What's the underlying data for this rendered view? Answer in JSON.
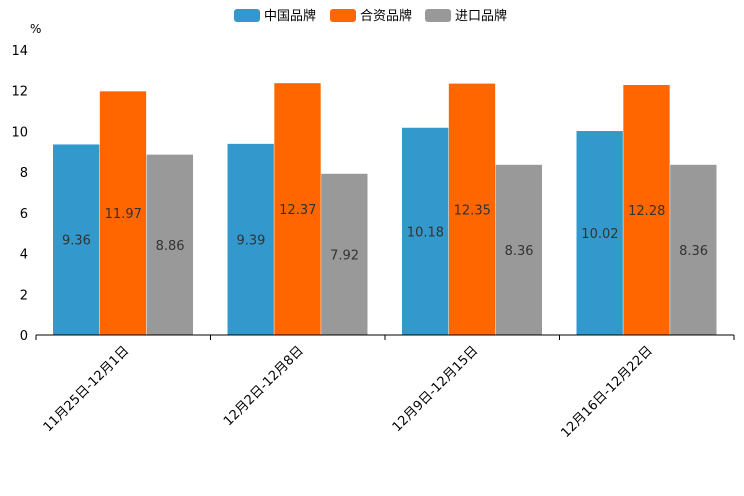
{
  "chart_data": {
    "type": "bar",
    "title": "",
    "xlabel": "",
    "ylabel": "%",
    "ylim": [
      0,
      14
    ],
    "yticks": [
      0,
      2,
      4,
      6,
      8,
      10,
      12,
      14
    ],
    "grid": false,
    "legend_position": "top-center",
    "categories": [
      "11月25日-12月1日",
      "12月2日-12月8日",
      "12月9日-12月15日",
      "12月16日-12月22日"
    ],
    "series": [
      {
        "name": "中国品牌",
        "color": "#3399CC",
        "values": [
          9.36,
          9.39,
          10.18,
          10.02
        ],
        "labels": [
          "9.36",
          "9.39",
          "10.18",
          "10.02"
        ]
      },
      {
        "name": "合资品牌",
        "color": "#FF6600",
        "values": [
          11.97,
          12.37,
          12.35,
          12.28
        ],
        "labels": [
          "11.97",
          "12.37",
          "12.35",
          "12.28"
        ]
      },
      {
        "name": "进口品牌",
        "color": "#999999",
        "values": [
          8.86,
          7.92,
          8.36,
          8.36
        ],
        "labels": [
          "8.86",
          "7.92",
          "8.36",
          "8.36"
        ]
      }
    ]
  }
}
